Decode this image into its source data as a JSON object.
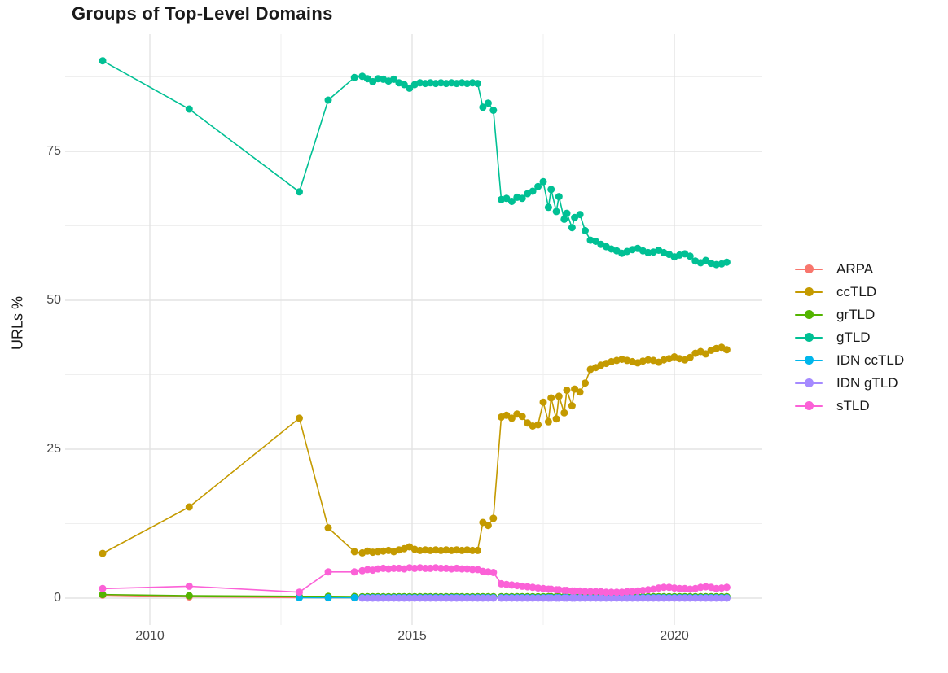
{
  "title": "Groups of Top-Level Domains",
  "y_axis": {
    "label": "URLs %",
    "ticks": [
      "0",
      "25",
      "50",
      "75"
    ],
    "tick_values": [
      0,
      25,
      50,
      75
    ],
    "minor_values": [
      12.5,
      37.5,
      62.5,
      87.5
    ]
  },
  "x_axis": {
    "ticks": [
      "2010",
      "2015",
      "2020"
    ],
    "tick_values": [
      2010,
      2015,
      2020
    ],
    "minor_values": [
      2012.5,
      2017.5
    ]
  },
  "colors": {
    "grid_major": "#e3e3e3",
    "grid_minor": "#efefef",
    "tick_text": "#4a4a4a",
    "text": "#1a1a1a",
    "background": "#ffffff"
  },
  "legend": {
    "position": "right",
    "items": [
      {
        "label": "ARPA",
        "color": "#F8766D"
      },
      {
        "label": "ccTLD",
        "color": "#C49A00"
      },
      {
        "label": "grTLD",
        "color": "#53B400"
      },
      {
        "label": "gTLD",
        "color": "#00C094"
      },
      {
        "label": "IDN ccTLD",
        "color": "#00B6EB"
      },
      {
        "label": "IDN gTLD",
        "color": "#A58AFF"
      },
      {
        "label": "sTLD",
        "color": "#FB61D7"
      }
    ]
  },
  "chart_data": {
    "type": "line",
    "title": "Groups of Top-Level Domains",
    "xlabel": "",
    "ylabel": "URLs %",
    "xlim": [
      2008.5,
      2021.7
    ],
    "ylim": [
      -4.5,
      94.5
    ],
    "grid": true,
    "legend_position": "right",
    "x": [
      2009.1,
      2010.75,
      2012.85,
      2013.4,
      2013.9,
      2014.05,
      2014.15,
      2014.25,
      2014.35,
      2014.45,
      2014.55,
      2014.65,
      2014.75,
      2014.85,
      2014.95,
      2015.05,
      2015.15,
      2015.25,
      2015.35,
      2015.45,
      2015.55,
      2015.65,
      2015.75,
      2015.85,
      2015.95,
      2016.05,
      2016.15,
      2016.25,
      2016.35,
      2016.45,
      2016.55,
      2016.7,
      2016.8,
      2016.9,
      2017.0,
      2017.1,
      2017.2,
      2017.3,
      2017.4,
      2017.5,
      2017.6,
      2017.65,
      2017.75,
      2017.8,
      2017.9,
      2017.95,
      2018.05,
      2018.1,
      2018.2,
      2018.3,
      2018.4,
      2018.5,
      2018.6,
      2018.7,
      2018.8,
      2018.9,
      2019.0,
      2019.1,
      2019.2,
      2019.3,
      2019.4,
      2019.5,
      2019.6,
      2019.7,
      2019.8,
      2019.9,
      2020.0,
      2020.1,
      2020.2,
      2020.3,
      2020.4,
      2020.5,
      2020.6,
      2020.7,
      2020.8,
      2020.9,
      2021.0
    ],
    "series": [
      {
        "name": "ARPA",
        "color": "#F8766D",
        "start_index": 0,
        "values": [
          0.5,
          0.2,
          0.1
        ],
        "fill_value": 0.05
      },
      {
        "name": "ccTLD",
        "color": "#C49A00",
        "start_index": 0,
        "values": [
          7.5,
          15.3,
          30.2,
          11.8,
          7.8,
          7.6,
          7.9,
          7.7,
          7.8,
          7.9,
          8.0,
          7.8,
          8.1,
          8.3,
          8.6,
          8.2,
          8.0,
          8.1,
          8.0,
          8.1,
          8.0,
          8.1,
          8.0,
          8.1,
          8.0,
          8.1,
          8.0,
          8.0,
          12.7,
          12.2,
          13.4,
          30.4,
          30.7,
          30.2,
          30.9,
          30.5,
          29.4,
          28.9,
          29.1,
          32.9,
          29.6,
          33.6,
          30.1,
          33.9,
          31.1,
          34.9,
          32.3,
          35.1,
          34.6,
          36.1,
          38.4,
          38.7,
          39.1,
          39.4,
          39.7,
          39.9,
          40.1,
          39.9,
          39.7,
          39.5,
          39.8,
          40.0,
          39.9,
          39.6,
          40.0,
          40.2,
          40.5,
          40.2,
          40.0,
          40.4,
          41.1,
          41.4,
          41.0,
          41.6,
          41.9,
          42.1,
          41.7
        ]
      },
      {
        "name": "grTLD",
        "color": "#53B400",
        "start_index": 0,
        "values": [
          0.6,
          0.4,
          0.3,
          0.3,
          0.28
        ],
        "fill_value": 0.25
      },
      {
        "name": "gTLD",
        "color": "#00C094",
        "start_index": 0,
        "values": [
          90.2,
          82.1,
          68.2,
          83.6,
          87.4,
          87.6,
          87.2,
          86.7,
          87.2,
          87.1,
          86.8,
          87.1,
          86.5,
          86.2,
          85.6,
          86.2,
          86.5,
          86.4,
          86.5,
          86.4,
          86.5,
          86.4,
          86.5,
          86.4,
          86.5,
          86.4,
          86.5,
          86.4,
          82.4,
          83.1,
          81.9,
          66.9,
          67.1,
          66.6,
          67.3,
          67.1,
          67.9,
          68.3,
          69.1,
          69.9,
          65.6,
          68.6,
          64.9,
          67.4,
          63.6,
          64.6,
          62.2,
          63.9,
          64.4,
          61.7,
          60.1,
          59.9,
          59.4,
          59.0,
          58.6,
          58.3,
          57.9,
          58.2,
          58.5,
          58.7,
          58.3,
          58.0,
          58.1,
          58.4,
          58.0,
          57.7,
          57.3,
          57.6,
          57.8,
          57.4,
          56.6,
          56.3,
          56.7,
          56.2,
          56.0,
          56.1,
          56.4
        ]
      },
      {
        "name": "IDN ccTLD",
        "color": "#00B6EB",
        "start_index": 2,
        "values": [
          0.08
        ],
        "fill_value": 0.08
      },
      {
        "name": "IDN gTLD",
        "color": "#A58AFF",
        "start_index": 5,
        "values": [
          0.0
        ],
        "fill_value": 0.0
      },
      {
        "name": "sTLD",
        "color": "#FB61D7",
        "start_index": 0,
        "values": [
          1.6,
          2.0,
          1.0,
          4.4,
          4.4,
          4.6,
          4.8,
          4.7,
          4.9,
          5.0,
          4.9,
          5.0,
          5.0,
          4.9,
          5.1,
          5.0,
          5.1,
          5.0,
          5.0,
          5.1,
          5.0,
          5.0,
          4.9,
          5.0,
          4.9,
          4.9,
          4.8,
          4.8,
          4.5,
          4.4,
          4.3,
          2.4,
          2.3,
          2.2,
          2.1,
          2.0,
          1.9,
          1.8,
          1.7,
          1.6,
          1.5,
          1.5,
          1.4,
          1.4,
          1.3,
          1.3,
          1.2,
          1.2,
          1.2,
          1.1,
          1.1,
          1.1,
          1.1,
          1.0,
          1.0,
          1.0,
          1.0,
          1.1,
          1.1,
          1.2,
          1.3,
          1.4,
          1.5,
          1.7,
          1.8,
          1.8,
          1.7,
          1.6,
          1.6,
          1.5,
          1.6,
          1.8,
          1.9,
          1.8,
          1.6,
          1.7,
          1.8
        ]
      }
    ]
  }
}
